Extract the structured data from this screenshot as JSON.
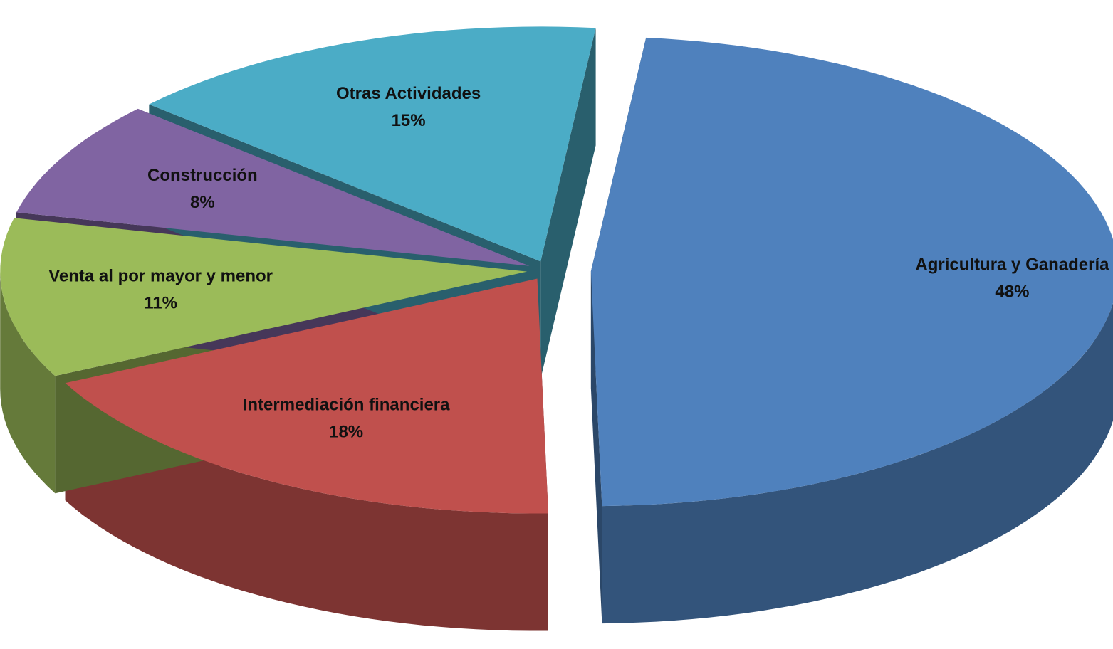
{
  "chart_data": {
    "type": "pie3d",
    "categories": [
      "Agricultura y Ganadería",
      "Intermediación financiera",
      "Venta al por mayor y menor",
      "Construcción",
      "Otras Actividades"
    ],
    "values": [
      48,
      18,
      11,
      8,
      15
    ],
    "value_labels": [
      "48%",
      "18%",
      "11%",
      "8%",
      "15%"
    ],
    "colors": [
      "#4f81bd",
      "#c0504d",
      "#9bbb59",
      "#8064a2",
      "#4bacc6"
    ]
  }
}
